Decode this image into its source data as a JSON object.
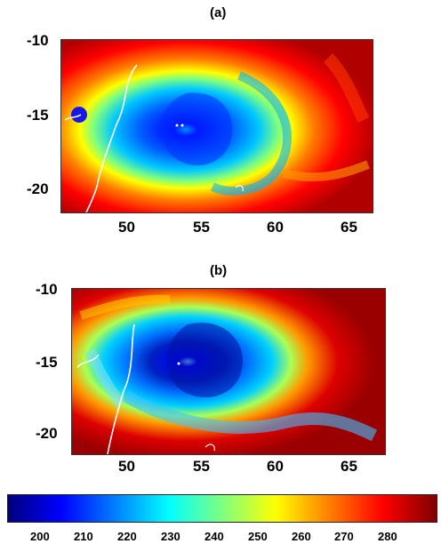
{
  "figure": {
    "panels": [
      {
        "label": "(a)",
        "y_ticks": [
          "-10",
          "-15",
          "-20"
        ],
        "x_ticks": [
          "50",
          "55",
          "60",
          "65"
        ]
      },
      {
        "label": "(b)",
        "y_ticks": [
          "-10",
          "-15",
          "-20"
        ],
        "x_ticks": [
          "50",
          "55",
          "60",
          "65"
        ]
      }
    ],
    "colorbar": {
      "ticks": [
        "200",
        "210",
        "220",
        "230",
        "240",
        "250",
        "260",
        "270",
        "280"
      ],
      "colormap": "jet",
      "colors": [
        "#00007f",
        "#0000ff",
        "#007fff",
        "#00ffff",
        "#7fff7f",
        "#ffff00",
        "#ff7f00",
        "#ff0000",
        "#7f0000"
      ]
    }
  }
}
